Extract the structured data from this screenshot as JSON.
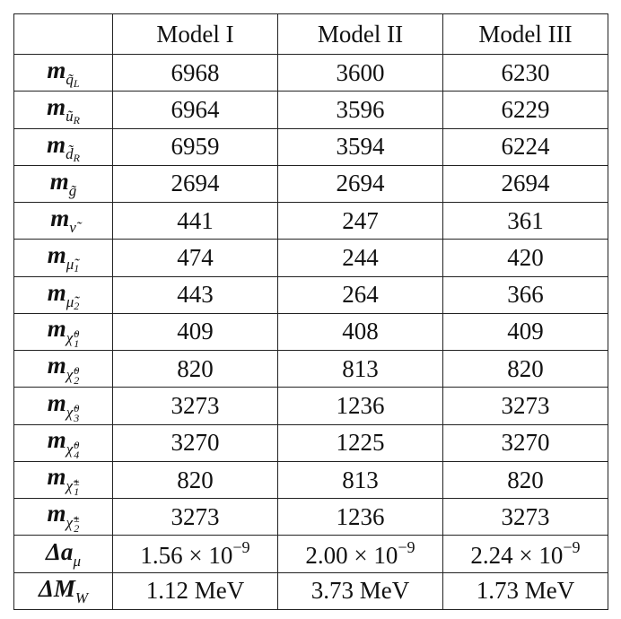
{
  "table": {
    "header": [
      "Model I",
      "Model II",
      "Model III"
    ],
    "rows": [
      {
        "label": {
          "base": "m",
          "sub": "q̃",
          "subsub": "L"
        },
        "cells": [
          "6968",
          "3600",
          "6230"
        ]
      },
      {
        "label": {
          "base": "m",
          "sub": "ũ",
          "subsub": "R"
        },
        "cells": [
          "6964",
          "3596",
          "6229"
        ]
      },
      {
        "label": {
          "base": "m",
          "sub": "d̃",
          "subsub": "R"
        },
        "cells": [
          "6959",
          "3594",
          "6224"
        ]
      },
      {
        "label": {
          "base": "m",
          "sub": "g̃"
        },
        "cells": [
          "2694",
          "2694",
          "2694"
        ]
      },
      {
        "label": {
          "base": "m",
          "sub": "ν̃"
        },
        "cells": [
          "441",
          "247",
          "361"
        ]
      },
      {
        "label": {
          "base": "m",
          "sub": "μ̃",
          "subsub": "1"
        },
        "cells": [
          "474",
          "244",
          "420"
        ]
      },
      {
        "label": {
          "base": "m",
          "sub": "μ̃",
          "subsub": "2"
        },
        "cells": [
          "443",
          "264",
          "366"
        ]
      },
      {
        "label": {
          "base": "m",
          "sub": "χ̃",
          "subsup": "0",
          "subsub": "1"
        },
        "cells": [
          "409",
          "408",
          "409"
        ]
      },
      {
        "label": {
          "base": "m",
          "sub": "χ̃",
          "subsup": "0",
          "subsub": "2"
        },
        "cells": [
          "820",
          "813",
          "820"
        ]
      },
      {
        "label": {
          "base": "m",
          "sub": "χ̃",
          "subsup": "0",
          "subsub": "3"
        },
        "cells": [
          "3273",
          "1236",
          "3273"
        ]
      },
      {
        "label": {
          "base": "m",
          "sub": "χ̃",
          "subsup": "0",
          "subsub": "4"
        },
        "cells": [
          "3270",
          "1225",
          "3270"
        ]
      },
      {
        "label": {
          "base": "m",
          "sub": "χ̃",
          "subsup": "±",
          "subsub": "1"
        },
        "cells": [
          "820",
          "813",
          "820"
        ]
      },
      {
        "label": {
          "base": "m",
          "sub": "χ̃",
          "subsup": "±",
          "subsub": "2"
        },
        "cells": [
          "3273",
          "1236",
          "3273"
        ]
      },
      {
        "label": {
          "base": "Δa",
          "sub": "μ"
        },
        "cells": [
          {
            "mantissa": "1.56 × 10",
            "exp": "−9"
          },
          {
            "mantissa": "2.00 × 10",
            "exp": "−9"
          },
          {
            "mantissa": "2.24 × 10",
            "exp": "−9"
          }
        ]
      },
      {
        "label": {
          "base": "ΔM",
          "sub": "W"
        },
        "cells": [
          "1.12 MeV",
          "3.73 MeV",
          "1.73 MeV"
        ]
      }
    ]
  }
}
